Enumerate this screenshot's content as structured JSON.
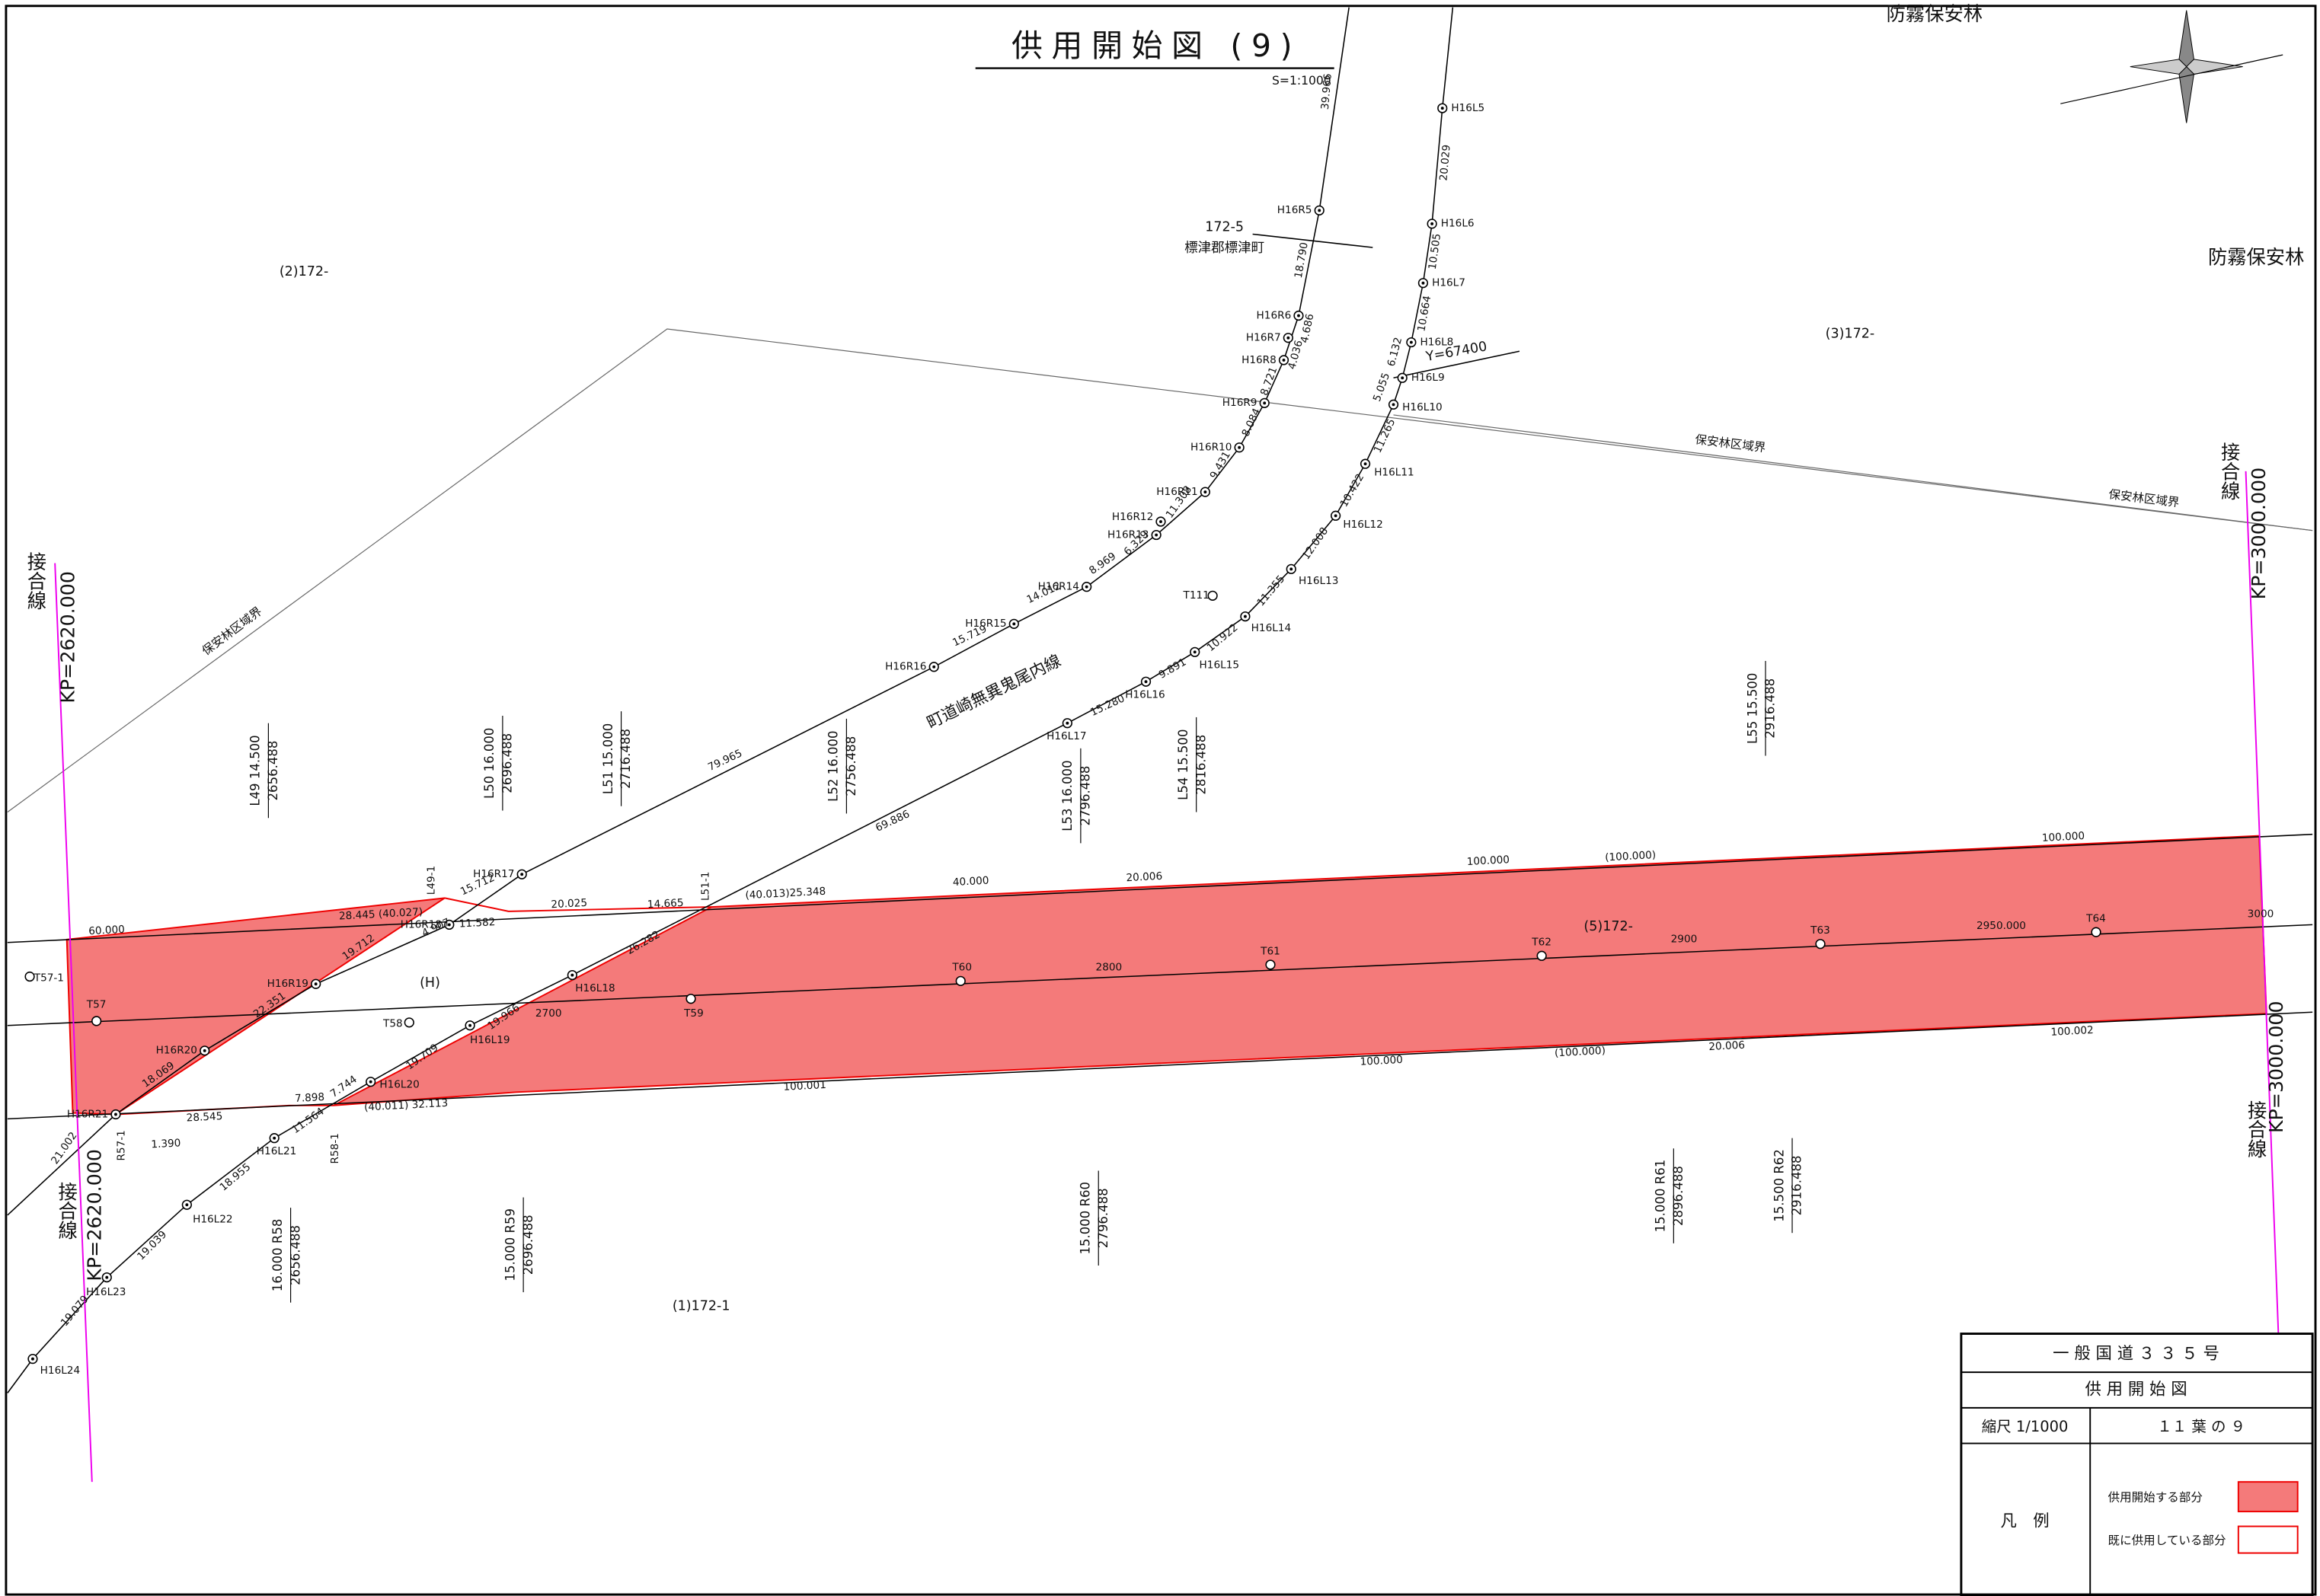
{
  "title": "供用開始図 (9)",
  "scale": "S=1:1000",
  "road_name": "町道崎無異鬼尾内線",
  "parcels": [
    "(2)172-",
    "(3)172-",
    "(1)172-1",
    "(5)172-",
    "(H)"
  ],
  "owner": [
    "172-5",
    "標津郡標津町"
  ],
  "forest": [
    "防霧保安林",
    "防霧保安林"
  ],
  "boundary": [
    "保安林区域界",
    "保安林区域界",
    "保安林区域界"
  ],
  "y_line": "Y=67400",
  "junctions": [
    {
      "label": "接合線",
      "kp": "KP=2620.000"
    },
    {
      "label": "接合線",
      "kp": "KP=2620.000"
    },
    {
      "label": "接合線",
      "kp": "KP=3000.000"
    },
    {
      "label": "接合線",
      "kp": "KP=3000.000"
    }
  ],
  "r_points": [
    "H16R5",
    "H16R6",
    "H16R7",
    "H16R8",
    "H16R9",
    "H16R10",
    "H16R11",
    "H16R12",
    "H16R13",
    "H16R14",
    "H16R15",
    "H16R16",
    "H16R17",
    "H16R18",
    "H16R19",
    "H16R20",
    "H16R21"
  ],
  "l_points": [
    "H16L5",
    "H16L6",
    "H16L7",
    "H16L8",
    "H16L9",
    "H16L10",
    "H16L11",
    "H16L12",
    "H16L13",
    "H16L14",
    "H16L15",
    "H16L16",
    "H16L17",
    "H16L18",
    "H16L19",
    "H16L20",
    "H16L21",
    "H16L22",
    "H16L23",
    "H16L24"
  ],
  "other_points": [
    "T57",
    "T57-1",
    "T58",
    "T59",
    "T60",
    "T61",
    "T62",
    "T63",
    "T64",
    "T111",
    "L49-1",
    "L51-1",
    "R57-1",
    "R58-1"
  ],
  "r_dims": [
    "39.966",
    "18.790",
    "4.686",
    "4.036",
    "8.721",
    "8.084",
    "9.431",
    "11.308",
    "6.329",
    "8.969",
    "14.012",
    "15.719",
    "79.965",
    "15.712",
    "4.907",
    "19.712",
    "22.351",
    "18.069",
    "21.002"
  ],
  "l_dims": [
    "20.029",
    "10.505",
    "10.664",
    "6.132",
    "5.055",
    "11.265",
    "10.422",
    "12.008",
    "11.355",
    "10.922",
    "9.891",
    "15.280",
    "69.886",
    "26.282",
    "19.966",
    "19.709",
    "7.744",
    "11.564",
    "18.955",
    "19.039",
    "19.079"
  ],
  "edge_dims": [
    "60.000",
    "28.445 (40.027)",
    "11.582",
    "20.025",
    "14.665",
    "(40.013)25.348",
    "40.000",
    "20.006",
    "100.000",
    "(100.000)",
    "100.000",
    "28.545",
    "7.898",
    "(40.011) 32.113",
    "100.001",
    "100.000",
    "(100.000)",
    "20.006",
    "100.002",
    "1.390"
  ],
  "chainage": [
    "2700",
    "2800",
    "2900",
    "2950.000",
    "3000"
  ],
  "stations": [
    [
      "L49 14.500",
      "2656.488"
    ],
    [
      "L50 16.000",
      "2696.488"
    ],
    [
      "L51 15.000",
      "2716.488"
    ],
    [
      "L52 16.000",
      "2756.488"
    ],
    [
      "L53 16.000",
      "2796.488"
    ],
    [
      "L54 15.500",
      "2816.488"
    ],
    [
      "L55 15.500",
      "2916.488"
    ],
    [
      "16.000 R58",
      "2656.488"
    ],
    [
      "15.000 R59",
      "2696.488"
    ],
    [
      "15.000 R60",
      "2796.488"
    ],
    [
      "15.000 R61",
      "2896.488"
    ],
    [
      "15.500 R62",
      "2916.488"
    ]
  ],
  "title_block": {
    "road": "一 般 国 道 ３ ３ ５ 号",
    "name": "供 用 開 始 図",
    "scale": "縮尺 1/1000",
    "sheet": "１１ 葉 の ９",
    "legend_title": "凡　例",
    "legend": [
      "供用開始する部分",
      "既に供用している部分"
    ]
  }
}
